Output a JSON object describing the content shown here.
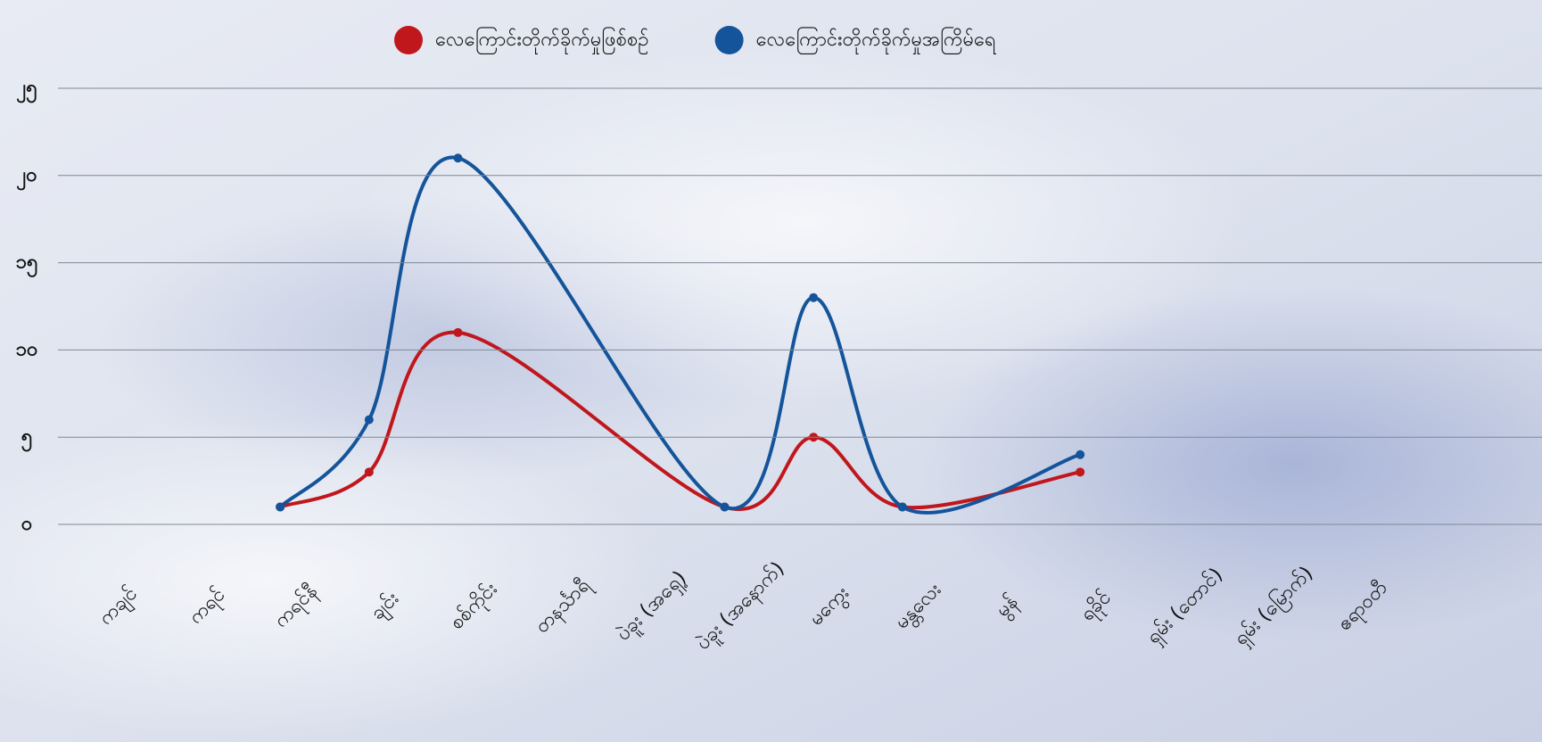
{
  "chart_data": {
    "type": "line",
    "categories": [
      "ကချင်",
      "ကရင်",
      "ကရင်နီ",
      "ချင်း",
      "စစ်ကိုင်း",
      "တနင်္သာရီ",
      "ပဲခူး (အရှေ့)",
      "ပဲခူး (အနောက်)",
      "မကွေး",
      "မန္တလေး",
      "မွန်",
      "ရခိုင်",
      "ရှမ်း (တောင်)",
      "ရှမ်း (မြောက်)",
      "ဧရာဝတီ"
    ],
    "series": [
      {
        "name": "လေကြောင်းတိုက်ခိုက်မှုဖြစ်စဉ်",
        "color": "#c0171c",
        "values": [
          null,
          null,
          1,
          3,
          11,
          null,
          null,
          1,
          5,
          1,
          null,
          3,
          null,
          null,
          null
        ]
      },
      {
        "name": "လေကြောင်းတိုက်ခိုက်မှုအကြိမ်ရေ",
        "color": "#14549a",
        "values": [
          null,
          null,
          1,
          6,
          21,
          null,
          null,
          1,
          13,
          1,
          null,
          4,
          null,
          null,
          null
        ]
      }
    ],
    "ylim": [
      0,
      25
    ],
    "yticks": [
      {
        "value": 0,
        "label": "၀"
      },
      {
        "value": 5,
        "label": "၅"
      },
      {
        "value": 10,
        "label": "၁၀"
      },
      {
        "value": 15,
        "label": "၁၅"
      },
      {
        "value": 20,
        "label": "၂၀"
      },
      {
        "value": 25,
        "label": "၂၅"
      }
    ],
    "grid": true,
    "smooth": true,
    "span_gaps": true,
    "legend": "top"
  }
}
